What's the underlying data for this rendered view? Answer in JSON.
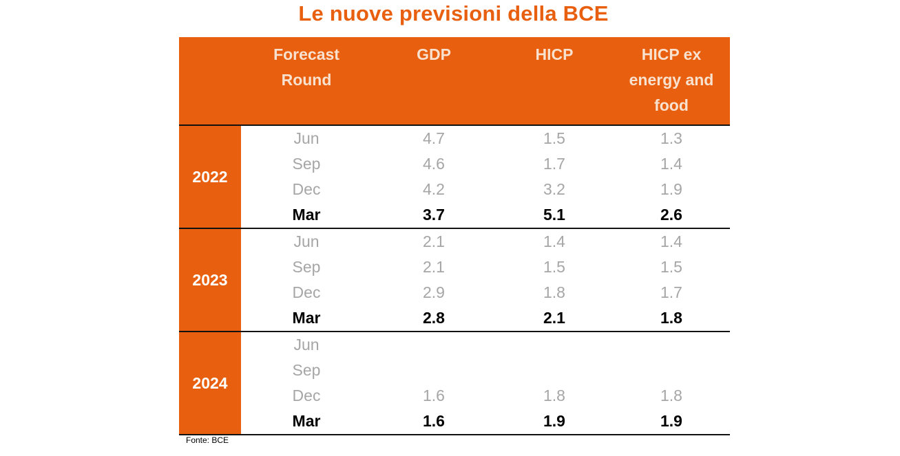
{
  "title": "Le nuove previsioni della BCE",
  "source": "Fonte: BCE",
  "colors": {
    "accent": "#E8600F",
    "header_text": "#F9E1CF",
    "muted_text": "#A6A6A6",
    "bold_text": "#000000"
  },
  "chart_data": {
    "type": "table",
    "title": "Le nuove previsioni della BCE",
    "columns": [
      "",
      "Forecast\nRound",
      "GDP",
      "HICP",
      "HICP ex\nenergy and\nfood"
    ],
    "groups": [
      {
        "year": "2022",
        "rows": [
          {
            "round": "Jun",
            "gdp": "4.7",
            "hicp": "1.5",
            "core": "1.3",
            "latest": false
          },
          {
            "round": "Sep",
            "gdp": "4.6",
            "hicp": "1.7",
            "core": "1.4",
            "latest": false
          },
          {
            "round": "Dec",
            "gdp": "4.2",
            "hicp": "3.2",
            "core": "1.9",
            "latest": false
          },
          {
            "round": "Mar",
            "gdp": "3.7",
            "hicp": "5.1",
            "core": "2.6",
            "latest": true
          }
        ]
      },
      {
        "year": "2023",
        "rows": [
          {
            "round": "Jun",
            "gdp": "2.1",
            "hicp": "1.4",
            "core": "1.4",
            "latest": false
          },
          {
            "round": "Sep",
            "gdp": "2.1",
            "hicp": "1.5",
            "core": "1.5",
            "latest": false
          },
          {
            "round": "Dec",
            "gdp": "2.9",
            "hicp": "1.8",
            "core": "1.7",
            "latest": false
          },
          {
            "round": "Mar",
            "gdp": "2.8",
            "hicp": "2.1",
            "core": "1.8",
            "latest": true
          }
        ]
      },
      {
        "year": "2024",
        "rows": [
          {
            "round": "Jun",
            "gdp": "",
            "hicp": "",
            "core": "",
            "latest": false
          },
          {
            "round": "Sep",
            "gdp": "",
            "hicp": "",
            "core": "",
            "latest": false
          },
          {
            "round": "Dec",
            "gdp": "1.6",
            "hicp": "1.8",
            "core": "1.8",
            "latest": false
          },
          {
            "round": "Mar",
            "gdp": "1.6",
            "hicp": "1.9",
            "core": "1.9",
            "latest": true
          }
        ]
      }
    ]
  }
}
